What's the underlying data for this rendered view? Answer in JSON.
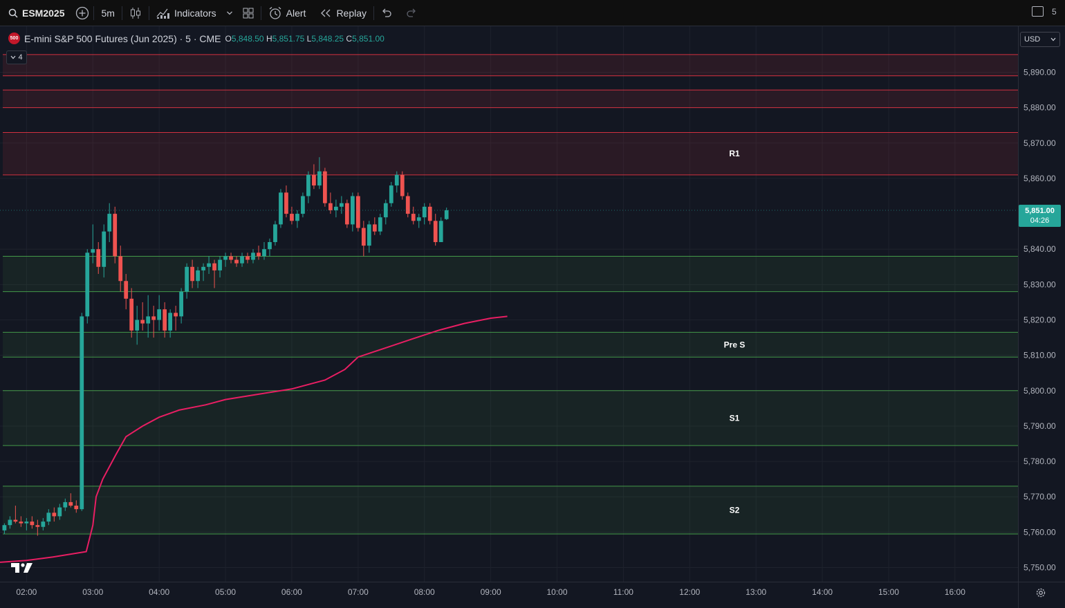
{
  "toolbar": {
    "symbol": "ESM2025",
    "interval": "5m",
    "indicators_label": "Indicators",
    "alert_label": "Alert",
    "replay_label": "Replay",
    "corner_text": "5"
  },
  "legend": {
    "badge": "500",
    "title": "E-mini S&P 500 Futures (Jun 2025) · 5 · CME",
    "open_key": "O",
    "open": "5,848.50",
    "high_key": "H",
    "high": "5,851.75",
    "low_key": "L",
    "low": "5,848.25",
    "close_key": "C",
    "close": "5,851.00",
    "collapsed_count": "4"
  },
  "currency": "USD",
  "last_price": {
    "price": "5,851.00",
    "countdown": "04:26"
  },
  "colors": {
    "up": "#26a69a",
    "down": "#ef5350",
    "vwap": "#e91e63",
    "resistance_line": "#f23645",
    "support_line": "#4caf50",
    "background": "#131722"
  },
  "chart_data": {
    "type": "candlestick",
    "title": "E-mini S&P 500 Futures (Jun 2025) · 5 · CME",
    "ylim": [
      5746,
      5903
    ],
    "y_ticks": [
      5890,
      5880,
      5870,
      5860,
      5840,
      5830,
      5820,
      5810,
      5800,
      5790,
      5780,
      5770,
      5760,
      5750
    ],
    "y_tick_labels": [
      "5,890.00",
      "5,880.00",
      "5,870.00",
      "5,860.00",
      "5,840.00",
      "5,830.00",
      "5,820.00",
      "5,810.00",
      "5,800.00",
      "5,790.00",
      "5,780.00",
      "5,770.00",
      "5,760.00",
      "5,750.00"
    ],
    "x_ticks": [
      "02:00",
      "03:00",
      "04:00",
      "05:00",
      "06:00",
      "07:00",
      "08:00",
      "09:00",
      "10:00",
      "11:00",
      "12:00",
      "13:00",
      "14:00",
      "15:00",
      "16:00"
    ],
    "x_tick_hours": [
      2,
      3,
      4,
      5,
      6,
      7,
      8,
      9,
      10,
      11,
      12,
      13,
      14,
      15,
      16
    ],
    "x_range_hours": [
      1.6,
      16.95
    ],
    "bar_interval_min": 5,
    "start_time": "01:40",
    "ohlc": [
      [
        5760.5,
        5762.5,
        5759.5,
        5762
      ],
      [
        5762,
        5764.5,
        5761,
        5763.5
      ],
      [
        5763.5,
        5767.5,
        5762.5,
        5763
      ],
      [
        5763,
        5764.5,
        5761.5,
        5762.5
      ],
      [
        5762.5,
        5764,
        5760.5,
        5763
      ],
      [
        5763,
        5764.5,
        5761,
        5762
      ],
      [
        5762,
        5763.5,
        5759,
        5761.5
      ],
      [
        5761.5,
        5764,
        5760.5,
        5763
      ],
      [
        5763,
        5766.5,
        5762,
        5765.5
      ],
      [
        5765.5,
        5767,
        5763,
        5764.5
      ],
      [
        5764.5,
        5768,
        5763.5,
        5767
      ],
      [
        5767,
        5769.5,
        5766,
        5768.5
      ],
      [
        5768.5,
        5771,
        5767,
        5767.5
      ],
      [
        5767.5,
        5769,
        5765.5,
        5766.5
      ],
      [
        5766.5,
        5822,
        5766,
        5821
      ],
      [
        5821,
        5840,
        5819,
        5839
      ],
      [
        5839,
        5847,
        5836,
        5840
      ],
      [
        5840,
        5842,
        5833,
        5835
      ],
      [
        5835,
        5847,
        5832,
        5845
      ],
      [
        5845,
        5853,
        5842,
        5850
      ],
      [
        5850,
        5852,
        5836,
        5838
      ],
      [
        5838,
        5841,
        5828,
        5831
      ],
      [
        5831,
        5833,
        5823,
        5826
      ],
      [
        5826,
        5829,
        5815,
        5817
      ],
      [
        5817,
        5824,
        5813,
        5820
      ],
      [
        5820,
        5825,
        5817,
        5819
      ],
      [
        5819,
        5827,
        5815,
        5821
      ],
      [
        5821,
        5824,
        5815,
        5820
      ],
      [
        5820,
        5827,
        5817,
        5823
      ],
      [
        5823,
        5825,
        5815,
        5817
      ],
      [
        5817,
        5823,
        5815,
        5822
      ],
      [
        5822,
        5824,
        5817,
        5821
      ],
      [
        5821,
        5829,
        5819,
        5828
      ],
      [
        5828,
        5836,
        5826,
        5835
      ],
      [
        5835,
        5837,
        5829,
        5831
      ],
      [
        5831,
        5835,
        5829,
        5834
      ],
      [
        5834,
        5836,
        5831,
        5835
      ],
      [
        5835,
        5838,
        5833,
        5836
      ],
      [
        5836,
        5837,
        5829,
        5834
      ],
      [
        5834,
        5838,
        5832,
        5837
      ],
      [
        5837,
        5839,
        5835,
        5838
      ],
      [
        5838,
        5839,
        5836,
        5837
      ],
      [
        5837,
        5838,
        5835,
        5836
      ],
      [
        5836,
        5839,
        5835,
        5838
      ],
      [
        5838,
        5839,
        5836,
        5837
      ],
      [
        5837,
        5840,
        5836,
        5839
      ],
      [
        5839,
        5841,
        5837,
        5838
      ],
      [
        5838,
        5842,
        5837,
        5840
      ],
      [
        5840,
        5843,
        5838,
        5842
      ],
      [
        5842,
        5848,
        5841,
        5847
      ],
      [
        5847,
        5857,
        5846,
        5856
      ],
      [
        5856,
        5858,
        5849,
        5850
      ],
      [
        5850,
        5852,
        5847,
        5848
      ],
      [
        5848,
        5851,
        5846,
        5850
      ],
      [
        5850,
        5856,
        5849,
        5855
      ],
      [
        5855,
        5862,
        5853,
        5861
      ],
      [
        5861,
        5864,
        5857,
        5858
      ],
      [
        5858,
        5866,
        5857,
        5862
      ],
      [
        5862,
        5863,
        5852,
        5853
      ],
      [
        5853,
        5856,
        5850,
        5851
      ],
      [
        5851,
        5854,
        5849,
        5852
      ],
      [
        5852,
        5855,
        5850,
        5853
      ],
      [
        5853,
        5854,
        5846,
        5847
      ],
      [
        5847,
        5856,
        5845,
        5855
      ],
      [
        5855,
        5856,
        5845,
        5846
      ],
      [
        5846,
        5848,
        5838,
        5841
      ],
      [
        5841,
        5848,
        5839,
        5847
      ],
      [
        5847,
        5849,
        5844,
        5845
      ],
      [
        5845,
        5850,
        5844,
        5849
      ],
      [
        5849,
        5854,
        5847,
        5853
      ],
      [
        5853,
        5859,
        5852,
        5858
      ],
      [
        5858,
        5862,
        5856,
        5861
      ],
      [
        5861,
        5862,
        5854,
        5855
      ],
      [
        5855,
        5856,
        5849,
        5850
      ],
      [
        5850,
        5852,
        5847,
        5848
      ],
      [
        5848,
        5850,
        5846,
        5849
      ],
      [
        5849,
        5853,
        5847,
        5852
      ],
      [
        5852,
        5853,
        5847,
        5848
      ],
      [
        5848,
        5850,
        5841,
        5842
      ],
      [
        5842,
        5849,
        5842,
        5848
      ],
      [
        5848.5,
        5851.75,
        5848.25,
        5851
      ]
    ],
    "vwap": [
      [
        1.6,
        5751.5
      ],
      [
        2.0,
        5752
      ],
      [
        2.4,
        5753
      ],
      [
        2.9,
        5754.5
      ],
      [
        3.0,
        5762
      ],
      [
        3.05,
        5770
      ],
      [
        3.15,
        5775
      ],
      [
        3.35,
        5782
      ],
      [
        3.5,
        5787
      ],
      [
        3.75,
        5790
      ],
      [
        4.0,
        5792.5
      ],
      [
        4.3,
        5794.5
      ],
      [
        4.7,
        5796
      ],
      [
        5.0,
        5797.5
      ],
      [
        5.5,
        5799
      ],
      [
        6.0,
        5800.5
      ],
      [
        6.5,
        5803
      ],
      [
        6.8,
        5806
      ],
      [
        7.0,
        5809.5
      ],
      [
        7.4,
        5812
      ],
      [
        7.8,
        5814.5
      ],
      [
        8.2,
        5817
      ],
      [
        8.6,
        5819
      ],
      [
        9.0,
        5820.5
      ],
      [
        9.25,
        5821
      ]
    ],
    "zones": [
      {
        "kind": "resistance",
        "top": 5895,
        "bottom": 5889,
        "label": ""
      },
      {
        "kind": "resistance",
        "top": 5885,
        "bottom": 5880,
        "label": ""
      },
      {
        "kind": "resistance",
        "top": 5873,
        "bottom": 5861,
        "label": "R1"
      },
      {
        "kind": "support",
        "top": 5838,
        "bottom": 5828,
        "label": ""
      },
      {
        "kind": "support",
        "top": 5816.5,
        "bottom": 5809.5,
        "label": "Pre S"
      },
      {
        "kind": "support",
        "top": 5800,
        "bottom": 5784.5,
        "label": "S1"
      },
      {
        "kind": "support",
        "top": 5773,
        "bottom": 5759.5,
        "label": "S2"
      }
    ],
    "grid": true
  }
}
